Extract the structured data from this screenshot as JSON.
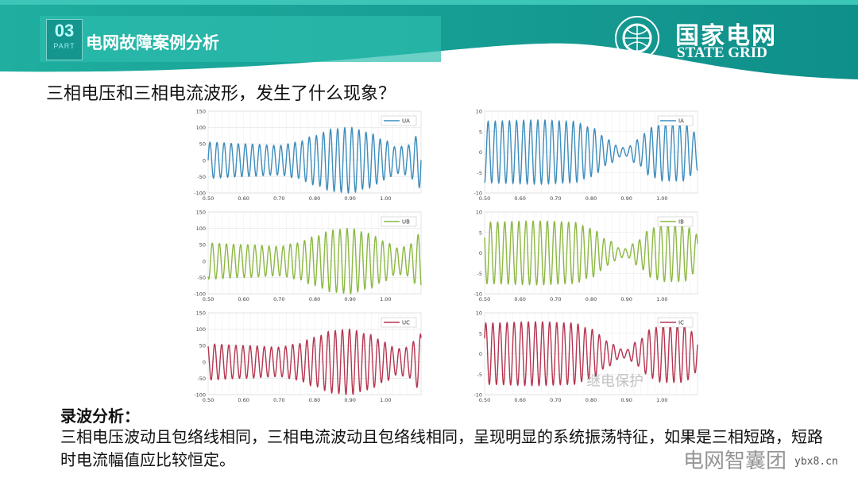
{
  "header": {
    "part_number": "03",
    "part_label": "PART",
    "section_title": "电网故障案例分析",
    "brand_cn": "国家电网",
    "brand_en": "STATE GRID",
    "theme_color": "#179b93"
  },
  "question": "三相电压和三相电流波形，发生了什么现象？",
  "analysis": {
    "title": "录波分析：",
    "body": "三相电压波动且包络线相同，三相电流波动且包络线相同，呈现明显的系统振荡特征，如果是三相短路，短路时电流幅值应比较恒定。"
  },
  "watermarks": [
    "电网智囊团",
    "ybx8.cn",
    "继电保护"
  ],
  "chart_data": [
    {
      "type": "line",
      "legend": "UA",
      "color": "#3d8dbd",
      "phase_deg": 0,
      "frequency_hz": 50,
      "xlim": [
        0.5,
        1.1
      ],
      "ylim": [
        -100,
        150
      ],
      "xticks": [
        "0.50",
        "0.60",
        "0.70",
        "0.80",
        "0.90",
        "1.00"
      ],
      "yticks": [
        "150",
        "100",
        "50",
        "0",
        "-50",
        "-100"
      ],
      "grid": true,
      "legend_position": "top-right",
      "envelope": [
        [
          0.5,
          55
        ],
        [
          0.6,
          50
        ],
        [
          0.7,
          45
        ],
        [
          0.75,
          55
        ],
        [
          0.8,
          75
        ],
        [
          0.85,
          95
        ],
        [
          0.9,
          100
        ],
        [
          0.95,
          85
        ],
        [
          1.0,
          60
        ],
        [
          1.03,
          40
        ],
        [
          1.06,
          45
        ],
        [
          1.1,
          85
        ]
      ]
    },
    {
      "type": "line",
      "legend": "IA",
      "color": "#3d8dbd",
      "phase_deg": -90,
      "frequency_hz": 50,
      "xlim": [
        0.5,
        1.1
      ],
      "ylim": [
        -10,
        10
      ],
      "xticks": [
        "0.50",
        "0.60",
        "0.70",
        "0.80",
        "0.90",
        "1.00"
      ],
      "yticks": [
        "10",
        "5",
        "0",
        "-5",
        "-10"
      ],
      "grid": true,
      "legend_position": "top-right",
      "envelope": [
        [
          0.5,
          7.5
        ],
        [
          0.65,
          7.8
        ],
        [
          0.75,
          7.5
        ],
        [
          0.8,
          6
        ],
        [
          0.85,
          3
        ],
        [
          0.88,
          1.2
        ],
        [
          0.9,
          1
        ],
        [
          0.93,
          3
        ],
        [
          0.97,
          6
        ],
        [
          1.0,
          7
        ],
        [
          1.06,
          7
        ],
        [
          1.1,
          4.5
        ]
      ]
    },
    {
      "type": "line",
      "legend": "UB",
      "color": "#8cb843",
      "phase_deg": -120,
      "frequency_hz": 50,
      "xlim": [
        0.5,
        1.1
      ],
      "ylim": [
        -100,
        150
      ],
      "xticks": [
        "0.50",
        "0.60",
        "0.70",
        "0.80",
        "0.90",
        "1.00"
      ],
      "yticks": [
        "150",
        "100",
        "50",
        "0",
        "-50",
        "-100"
      ],
      "grid": true,
      "legend_position": "top-right",
      "envelope": [
        [
          0.5,
          55
        ],
        [
          0.6,
          50
        ],
        [
          0.7,
          45
        ],
        [
          0.75,
          55
        ],
        [
          0.8,
          75
        ],
        [
          0.85,
          95
        ],
        [
          0.9,
          100
        ],
        [
          0.95,
          85
        ],
        [
          1.0,
          60
        ],
        [
          1.03,
          40
        ],
        [
          1.06,
          45
        ],
        [
          1.1,
          85
        ]
      ]
    },
    {
      "type": "line",
      "legend": "IB",
      "color": "#8cb843",
      "phase_deg": -210,
      "frequency_hz": 50,
      "xlim": [
        0.5,
        1.1
      ],
      "ylim": [
        -10,
        10
      ],
      "xticks": [
        "0.50",
        "0.60",
        "0.70",
        "0.80",
        "0.90",
        "1.00"
      ],
      "yticks": [
        "10",
        "5",
        "0",
        "-5",
        "-10"
      ],
      "grid": true,
      "legend_position": "top-right",
      "envelope": [
        [
          0.5,
          7.5
        ],
        [
          0.65,
          7.8
        ],
        [
          0.75,
          7.5
        ],
        [
          0.8,
          6
        ],
        [
          0.85,
          3
        ],
        [
          0.88,
          1.2
        ],
        [
          0.9,
          1
        ],
        [
          0.93,
          3
        ],
        [
          0.97,
          6
        ],
        [
          1.0,
          7
        ],
        [
          1.06,
          7
        ],
        [
          1.1,
          4.5
        ]
      ]
    },
    {
      "type": "line",
      "legend": "UC",
      "color": "#b5354f",
      "phase_deg": 120,
      "frequency_hz": 50,
      "xlim": [
        0.5,
        1.1
      ],
      "ylim": [
        -100,
        150
      ],
      "xticks": [
        "0.50",
        "0.60",
        "0.70",
        "0.80",
        "0.90",
        "1.00"
      ],
      "yticks": [
        "150",
        "100",
        "50",
        "0",
        "-50",
        "-100"
      ],
      "grid": true,
      "legend_position": "top-right",
      "envelope": [
        [
          0.5,
          55
        ],
        [
          0.6,
          50
        ],
        [
          0.7,
          45
        ],
        [
          0.75,
          55
        ],
        [
          0.8,
          75
        ],
        [
          0.85,
          95
        ],
        [
          0.9,
          100
        ],
        [
          0.95,
          85
        ],
        [
          1.0,
          60
        ],
        [
          1.03,
          40
        ],
        [
          1.06,
          45
        ],
        [
          1.1,
          85
        ]
      ]
    },
    {
      "type": "line",
      "legend": "IC",
      "color": "#b5354f",
      "phase_deg": 30,
      "frequency_hz": 50,
      "xlim": [
        0.5,
        1.1
      ],
      "ylim": [
        -10,
        10
      ],
      "xticks": [
        "0.50",
        "0.60",
        "0.70",
        "0.80",
        "0.90",
        "1.00"
      ],
      "yticks": [
        "10",
        "5",
        "0",
        "-5",
        "-10"
      ],
      "grid": true,
      "legend_position": "top-right",
      "envelope": [
        [
          0.5,
          7.5
        ],
        [
          0.65,
          7.8
        ],
        [
          0.75,
          7.5
        ],
        [
          0.8,
          6
        ],
        [
          0.85,
          3
        ],
        [
          0.88,
          1.2
        ],
        [
          0.9,
          1
        ],
        [
          0.93,
          3
        ],
        [
          0.97,
          6
        ],
        [
          1.0,
          7
        ],
        [
          1.06,
          7
        ],
        [
          1.1,
          4.5
        ]
      ]
    }
  ]
}
